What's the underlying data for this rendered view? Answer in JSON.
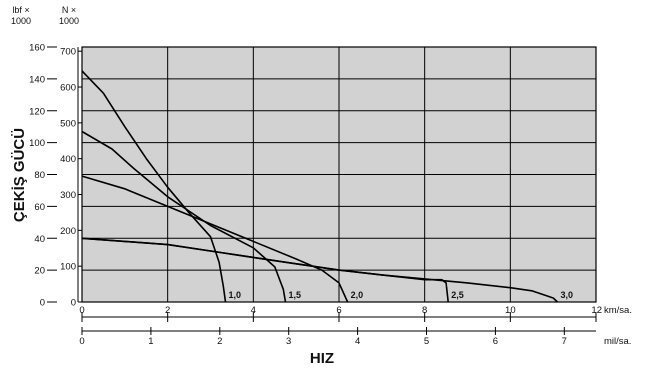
{
  "chart_data": {
    "type": "line",
    "title": "",
    "ylabel": "ÇEKİŞ GÜCÜ",
    "xlabel": "HIZ",
    "colors": {
      "plot_bg": "#d2d2d2",
      "grid": "#000000",
      "line": "#000000"
    },
    "grid": true,
    "y_axes": [
      {
        "name": "lbf",
        "unit_label": "lbf ×",
        "unit_sub": "1000",
        "ticks": [
          0,
          20,
          40,
          60,
          80,
          100,
          120,
          140,
          160
        ],
        "range": [
          0,
          160
        ]
      },
      {
        "name": "N",
        "unit_label": "N ×",
        "unit_sub": "1000",
        "ticks": [
          0,
          100,
          200,
          300,
          400,
          500,
          600,
          700
        ],
        "range": [
          0,
          711.7
        ]
      }
    ],
    "x_axes": [
      {
        "name": "km",
        "unit_label": "km/sa.",
        "ticks": [
          0,
          2,
          4,
          6,
          8,
          10,
          12
        ],
        "range": [
          0,
          12
        ]
      },
      {
        "name": "mil",
        "unit_label": "mil/sa.",
        "ticks": [
          0,
          1,
          2,
          3,
          4,
          5,
          6,
          7
        ],
        "range": [
          0,
          7.46
        ]
      }
    ],
    "series": [
      {
        "name": "1,0",
        "x_km": [
          0.0,
          0.5,
          1.0,
          1.5,
          2.0,
          2.5,
          3.0,
          3.2,
          3.3,
          3.35
        ],
        "y_lbf": [
          145.0,
          131.0,
          110.0,
          90.0,
          72.0,
          56.0,
          41.0,
          25.0,
          10.0,
          0.0
        ]
      },
      {
        "name": "1,5",
        "x_km": [
          0.0,
          0.7,
          1.2,
          2.0,
          3.0,
          4.0,
          4.5,
          4.7,
          4.75
        ],
        "y_lbf": [
          107.0,
          96.0,
          84.0,
          66.0,
          48.0,
          34.0,
          22.0,
          8.0,
          0.0
        ]
      },
      {
        "name": "2,0",
        "x_km": [
          0.0,
          1.0,
          2.0,
          3.0,
          4.0,
          5.0,
          5.6,
          6.0,
          6.2
        ],
        "y_lbf": [
          79.0,
          71.0,
          60.0,
          49.0,
          38.0,
          27.0,
          20.0,
          12.0,
          0.0
        ]
      },
      {
        "name": "2,5",
        "x_km": [
          0.0,
          1.0,
          2.0,
          3.0,
          4.0,
          5.0,
          6.0,
          7.0,
          8.0,
          8.4,
          8.5,
          8.55
        ],
        "y_lbf": [
          40.0,
          38.0,
          36.0,
          32.0,
          28.0,
          24.0,
          20.0,
          17.0,
          14.0,
          14.0,
          12.0,
          0.0
        ]
      },
      {
        "name": "3,0",
        "x_km": [
          0.0,
          1.0,
          2.0,
          3.0,
          4.0,
          5.0,
          6.0,
          7.0,
          8.0,
          9.0,
          10.0,
          10.5,
          11.0,
          11.1
        ],
        "y_lbf": [
          40.0,
          38.0,
          36.0,
          32.0,
          28.0,
          24.0,
          20.0,
          17.0,
          14.5,
          12.0,
          9.0,
          7.0,
          2.5,
          0.0
        ]
      }
    ]
  }
}
